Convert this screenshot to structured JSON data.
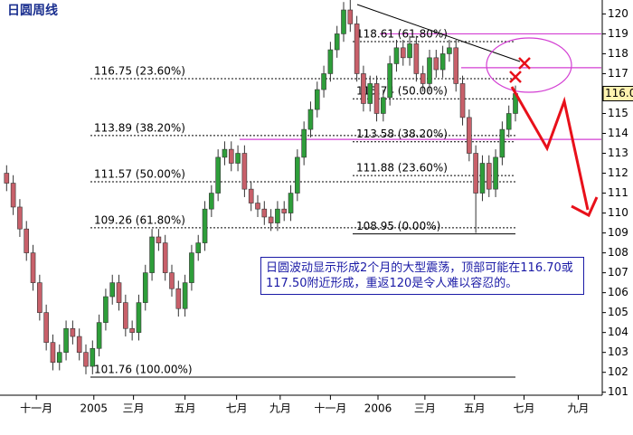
{
  "chart_data": {
    "type": "candlestick",
    "title": "日圆周线",
    "note": "日圆波动显示形成2个月的大型震荡，顶部可能在116.70或117.50附近形成，重返120是令人难以容忍的。",
    "x": [
      1,
      2,
      3,
      4,
      5,
      6,
      7,
      8,
      9,
      10,
      11,
      12,
      13,
      14,
      15,
      16,
      17,
      18,
      19,
      20,
      21,
      22,
      23,
      24,
      25,
      26,
      27,
      28,
      29,
      30,
      31,
      32,
      33,
      34,
      35,
      36,
      37,
      38,
      39,
      40,
      41,
      42,
      43,
      44,
      45,
      46,
      47,
      48,
      49,
      50,
      51,
      52,
      53,
      54,
      55,
      56,
      57,
      58,
      59,
      60,
      61,
      62,
      63,
      64,
      65,
      66,
      67,
      68,
      69,
      70,
      71,
      72,
      73,
      74,
      75,
      76,
      77,
      78
    ],
    "open": [
      112.0,
      111.5,
      110.3,
      109.2,
      108.0,
      106.5,
      105.0,
      103.5,
      102.5,
      103.0,
      104.2,
      103.8,
      103.0,
      102.3,
      103.2,
      104.5,
      105.8,
      106.5,
      105.5,
      104.2,
      104.0,
      105.5,
      107.0,
      108.8,
      108.5,
      107.0,
      106.2,
      105.2,
      106.5,
      108.0,
      108.5,
      110.2,
      111.0,
      112.8,
      113.2,
      112.5,
      113.0,
      111.2,
      110.5,
      110.2,
      109.8,
      109.5,
      110.2,
      110.0,
      111.0,
      112.8,
      114.2,
      115.2,
      116.2,
      117.0,
      118.2,
      119.0,
      120.2,
      119.5,
      117.0,
      115.5,
      116.5,
      115.0,
      115.8,
      117.5,
      118.3,
      117.8,
      118.5,
      117.0,
      116.5,
      117.8,
      117.2,
      118.0,
      118.3,
      116.5,
      114.8,
      113.0,
      111.0,
      112.5,
      111.2,
      112.8,
      114.2,
      115.0
    ],
    "high": [
      112.4,
      111.9,
      110.7,
      109.6,
      108.4,
      106.9,
      105.4,
      103.9,
      103.4,
      104.6,
      104.6,
      104.2,
      103.4,
      103.6,
      104.9,
      106.2,
      106.9,
      106.9,
      105.9,
      104.6,
      105.9,
      107.4,
      109.2,
      109.2,
      108.9,
      107.4,
      106.6,
      106.9,
      108.4,
      108.9,
      110.6,
      111.4,
      113.2,
      113.6,
      113.6,
      113.4,
      113.4,
      111.6,
      110.9,
      110.6,
      110.2,
      110.6,
      110.6,
      111.4,
      113.2,
      114.6,
      115.6,
      116.6,
      117.4,
      118.6,
      119.4,
      120.6,
      120.7,
      119.9,
      117.4,
      116.9,
      116.9,
      116.2,
      117.9,
      118.7,
      118.7,
      118.9,
      118.9,
      117.4,
      118.2,
      118.2,
      118.4,
      118.7,
      118.7,
      116.9,
      115.2,
      113.4,
      112.9,
      112.9,
      113.2,
      114.6,
      115.4,
      116.4
    ],
    "low": [
      111.1,
      109.9,
      108.8,
      107.6,
      106.1,
      104.6,
      103.1,
      102.1,
      102.1,
      102.6,
      103.4,
      102.6,
      101.9,
      101.9,
      102.8,
      104.1,
      105.4,
      105.1,
      103.8,
      103.6,
      103.6,
      105.1,
      106.6,
      108.1,
      106.6,
      105.8,
      104.8,
      104.8,
      106.1,
      107.6,
      108.1,
      109.8,
      110.6,
      112.4,
      112.1,
      112.1,
      110.8,
      110.1,
      109.8,
      109.4,
      109.1,
      109.1,
      109.6,
      109.6,
      110.6,
      112.4,
      113.8,
      114.8,
      115.8,
      116.6,
      117.8,
      118.6,
      119.1,
      116.6,
      115.1,
      115.1,
      114.6,
      114.6,
      115.4,
      117.1,
      117.4,
      117.4,
      116.6,
      116.1,
      116.1,
      116.8,
      116.8,
      117.6,
      116.1,
      114.4,
      112.6,
      109.0,
      110.6,
      110.8,
      110.8,
      112.4,
      113.8,
      114.6
    ],
    "close": [
      111.5,
      110.3,
      109.2,
      108.0,
      106.5,
      105.0,
      103.5,
      102.5,
      103.0,
      104.2,
      103.8,
      103.0,
      102.3,
      103.2,
      104.5,
      105.8,
      106.5,
      105.5,
      104.2,
      104.0,
      105.5,
      107.0,
      108.8,
      108.5,
      107.0,
      106.2,
      105.2,
      106.5,
      108.0,
      108.5,
      110.2,
      111.0,
      112.8,
      113.2,
      112.5,
      113.0,
      111.2,
      110.5,
      110.2,
      109.8,
      109.5,
      110.2,
      110.0,
      111.0,
      112.8,
      114.2,
      115.2,
      116.2,
      117.0,
      118.2,
      119.0,
      120.2,
      119.5,
      117.0,
      115.5,
      116.5,
      115.0,
      115.8,
      117.5,
      118.3,
      117.8,
      118.5,
      117.0,
      116.5,
      117.8,
      117.2,
      118.0,
      118.3,
      116.5,
      114.8,
      113.0,
      111.0,
      112.5,
      111.2,
      112.8,
      114.2,
      115.0,
      116.0
    ],
    "up_color": "#2e9e3a",
    "down_color": "#c8606a",
    "xlim": [
      0,
      91
    ],
    "ylim": [
      100.85,
      120.7
    ],
    "xticks": [
      {
        "value": 5.5,
        "label": "十一月"
      },
      {
        "value": 14.2,
        "label": "2005"
      },
      {
        "value": 20.2,
        "label": "三月"
      },
      {
        "value": 28,
        "label": "五月"
      },
      {
        "value": 35.8,
        "label": "七月"
      },
      {
        "value": 42.4,
        "label": "九月"
      },
      {
        "value": 50,
        "label": "十一月"
      },
      {
        "value": 57.2,
        "label": "2006"
      },
      {
        "value": 64.3,
        "label": "三月"
      },
      {
        "value": 71.8,
        "label": "五月"
      },
      {
        "value": 79.3,
        "label": "七月"
      },
      {
        "value": 87.5,
        "label": "九月"
      }
    ],
    "yticks": [
      101,
      102,
      103,
      104,
      105,
      106,
      107,
      108,
      109,
      110,
      111,
      112,
      113,
      114,
      115,
      117,
      118,
      119,
      120
    ],
    "current_price": {
      "value": 116,
      "label": "116.0"
    },
    "fib_left": [
      {
        "value": 116.75,
        "label": "116.75 (23.60%)"
      },
      {
        "value": 113.89,
        "label": "113.89 (38.20%)"
      },
      {
        "value": 111.57,
        "label": "111.57 (50.00%)"
      },
      {
        "value": 109.26,
        "label": "109.26 (61.80%)"
      },
      {
        "value": 101.76,
        "label": "101.76 (100.00%)"
      }
    ],
    "fib_right": [
      {
        "value": 118.61,
        "label": "118.61 (61.80%)"
      },
      {
        "value": 115.74,
        "label": "115.74 (50.00%)"
      },
      {
        "value": 113.58,
        "label": "113.58 (38.20%)"
      },
      {
        "value": 111.88,
        "label": "111.88 (23.60%)"
      },
      {
        "value": 108.95,
        "label": "108.95 (0.00%)"
      }
    ],
    "resistance_lines": [
      119,
      117.3,
      113.7
    ],
    "resistance_color": "#d33fd3"
  }
}
